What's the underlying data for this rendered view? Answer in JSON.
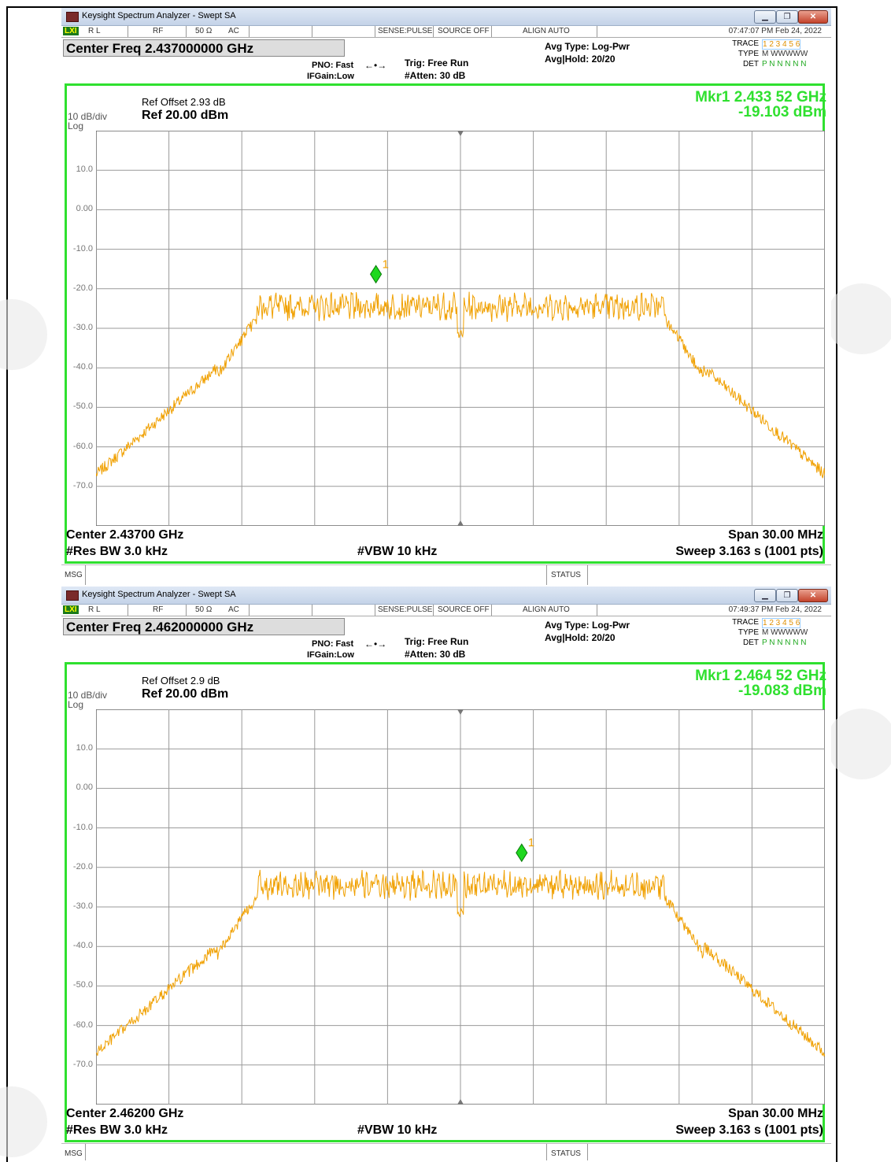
{
  "screens": [
    {
      "title": "Keysight Spectrum Analyzer - Swept SA",
      "status": {
        "rl": "R L",
        "rf": "RF",
        "imp": "50 Ω",
        "ac": "AC",
        "sense": "SENSE:PULSE",
        "source": "SOURCE OFF",
        "align": "ALIGN AUTO",
        "time": "07:47:07 PM Feb 24, 2022"
      },
      "center_freq_box": "Center Freq 2.437000000 GHz",
      "pno": "PNO: Fast",
      "ifgain": "IFGain:Low",
      "trig": "Trig: Free Run",
      "atten": "#Atten: 30 dB",
      "avg_type": "Avg Type: Log-Pwr",
      "avg_hold": "Avg|Hold: 20/20",
      "trace_label": "TRACE",
      "trace_nums": "1 2 3 4 5 6",
      "type_label": "TYPE",
      "type_vals": "M WWWWW",
      "det_label": "DET",
      "det_vals": "P N N N N N",
      "ref_offset": "Ref Offset 2.93 dB",
      "ref_level": "Ref 20.00 dBm",
      "scale_div": "10 dB/div",
      "scale_log": "Log",
      "marker_freq": "Mkr1 2.433 52 GHz",
      "marker_amp": "-19.103 dBm",
      "marker_label": "1",
      "y_ticks": [
        "10.0",
        "0.00",
        "-10.0",
        "-20.0",
        "-30.0",
        "-40.0",
        "-50.0",
        "-60.0",
        "-70.0"
      ],
      "center_label": "Center 2.43700 GHz",
      "span_label": "Span 30.00 MHz",
      "rbw_label": "#Res BW 3.0 kHz",
      "vbw_label": "#VBW 10 kHz",
      "sweep_label": "Sweep  3.163 s (1001 pts)",
      "msg": "MSG",
      "statusbar": "STATUS",
      "chart_data": {
        "type": "line",
        "center_ghz": 2.437,
        "span_mhz": 30,
        "ref_dbm": 20,
        "db_per_div": 10,
        "marker_offset_mhz": -3.48,
        "marker_dbm": -19.103
      }
    },
    {
      "title": "Keysight Spectrum Analyzer - Swept SA",
      "status": {
        "rl": "R L",
        "rf": "RF",
        "imp": "50 Ω",
        "ac": "AC",
        "sense": "SENSE:PULSE",
        "source": "SOURCE OFF",
        "align": "ALIGN AUTO",
        "time": "07:49:37 PM Feb 24, 2022"
      },
      "center_freq_box": "Center Freq 2.462000000 GHz",
      "pno": "PNO: Fast",
      "ifgain": "IFGain:Low",
      "trig": "Trig: Free Run",
      "atten": "#Atten: 30 dB",
      "avg_type": "Avg Type: Log-Pwr",
      "avg_hold": "Avg|Hold: 20/20",
      "trace_label": "TRACE",
      "trace_nums": "1 2 3 4 5 6",
      "type_label": "TYPE",
      "type_vals": "M WWWWW",
      "det_label": "DET",
      "det_vals": "P N N N N N",
      "ref_offset": "Ref Offset 2.9 dB",
      "ref_level": "Ref 20.00 dBm",
      "scale_div": "10 dB/div",
      "scale_log": "Log",
      "marker_freq": "Mkr1 2.464 52 GHz",
      "marker_amp": "-19.083 dBm",
      "marker_label": "1",
      "y_ticks": [
        "10.0",
        "0.00",
        "-10.0",
        "-20.0",
        "-30.0",
        "-40.0",
        "-50.0",
        "-60.0",
        "-70.0"
      ],
      "center_label": "Center 2.46200 GHz",
      "span_label": "Span 30.00 MHz",
      "rbw_label": "#Res BW 3.0 kHz",
      "vbw_label": "#VBW 10 kHz",
      "sweep_label": "Sweep  3.163 s (1001 pts)",
      "msg": "MSG",
      "statusbar": "STATUS",
      "chart_data": {
        "type": "line",
        "center_ghz": 2.462,
        "span_mhz": 30,
        "ref_dbm": 20,
        "db_per_div": 10,
        "marker_offset_mhz": 2.52,
        "marker_dbm": -19.083
      }
    }
  ]
}
